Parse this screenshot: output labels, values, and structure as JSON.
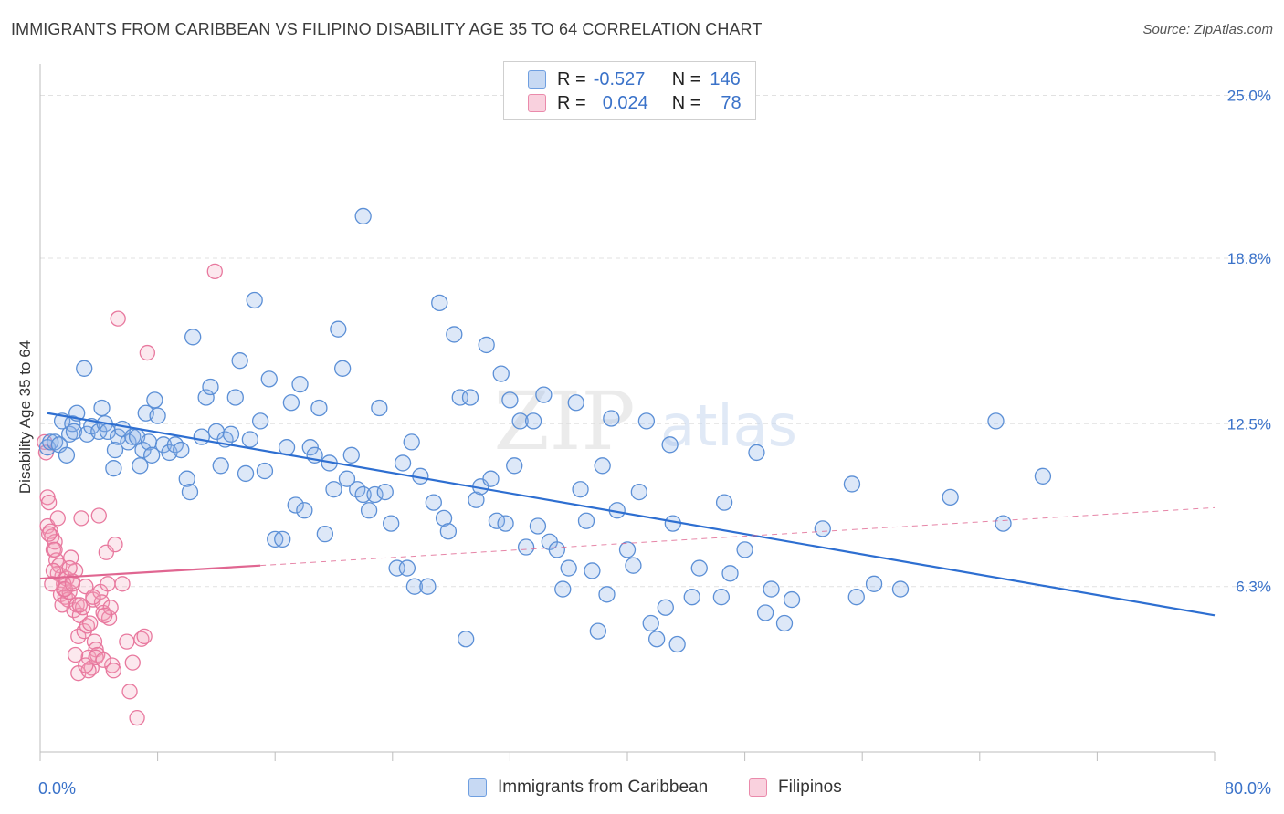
{
  "title": "IMMIGRANTS FROM CARIBBEAN VS FILIPINO DISABILITY AGE 35 TO 64 CORRELATION CHART",
  "source": "Source: ZipAtlas.com",
  "watermark": {
    "zip": "ZIP",
    "atlas": "atlas"
  },
  "legend": {
    "r_label": "R =",
    "n_label": "N =",
    "rows": [
      {
        "r": "-0.527",
        "n": "146",
        "color": "#8fb4e8"
      },
      {
        "r": "0.024",
        "n": "78",
        "color": "#f3a3bd"
      }
    ]
  },
  "bottom_legend": [
    {
      "label": "Immigrants from Caribbean",
      "color": "#8fb4e8"
    },
    {
      "label": "Filipinos",
      "color": "#f3a3bd"
    }
  ],
  "colors": {
    "blue_stroke": "#5b8fd6",
    "blue_fill": "rgba(143,180,232,0.30)",
    "blue_line": "#2e6fd1",
    "pink_stroke": "#e8789e",
    "pink_fill": "rgba(243,163,189,0.25)",
    "pink_line": "#e06691",
    "tick_label": "#3a72c9",
    "grid": "#e1e1e1"
  },
  "chart_data": {
    "type": "scatter",
    "xlabel": "",
    "ylabel": "Disability Age 35 to 64",
    "xlim": [
      0,
      80
    ],
    "ylim": [
      0,
      26.2
    ],
    "x_tick_labels": [
      "0.0%",
      "80.0%"
    ],
    "y_ticks": [
      6.3,
      12.5,
      18.8,
      25.0
    ],
    "y_tick_labels": [
      "6.3%",
      "12.5%",
      "18.8%",
      "25.0%"
    ],
    "grid": true,
    "series": [
      {
        "name": "Immigrants from Caribbean",
        "r": -0.527,
        "n": 146,
        "trend": {
          "x": [
            0.5,
            80
          ],
          "y": [
            12.9,
            5.2
          ]
        },
        "points": [
          [
            0.5,
            11.6
          ],
          [
            0.7,
            11.8
          ],
          [
            1.0,
            11.8
          ],
          [
            1.3,
            11.7
          ],
          [
            1.5,
            12.6
          ],
          [
            1.8,
            11.3
          ],
          [
            2.0,
            12.1
          ],
          [
            2.2,
            12.5
          ],
          [
            2.3,
            12.2
          ],
          [
            2.5,
            12.9
          ],
          [
            3.0,
            14.6
          ],
          [
            3.2,
            12.1
          ],
          [
            3.5,
            12.4
          ],
          [
            4.0,
            12.2
          ],
          [
            4.2,
            13.1
          ],
          [
            4.4,
            12.5
          ],
          [
            4.6,
            12.2
          ],
          [
            5.0,
            10.8
          ],
          [
            5.1,
            11.5
          ],
          [
            5.3,
            12.0
          ],
          [
            5.6,
            12.3
          ],
          [
            6.0,
            11.8
          ],
          [
            6.3,
            12.0
          ],
          [
            6.6,
            12.0
          ],
          [
            6.8,
            10.9
          ],
          [
            7.0,
            11.5
          ],
          [
            7.2,
            12.9
          ],
          [
            7.4,
            11.8
          ],
          [
            7.6,
            11.3
          ],
          [
            7.8,
            13.4
          ],
          [
            8.0,
            12.8
          ],
          [
            8.4,
            11.7
          ],
          [
            8.8,
            11.4
          ],
          [
            9.2,
            11.7
          ],
          [
            9.6,
            11.5
          ],
          [
            10.0,
            10.4
          ],
          [
            10.2,
            9.9
          ],
          [
            10.4,
            15.8
          ],
          [
            11.0,
            12.0
          ],
          [
            11.3,
            13.5
          ],
          [
            11.6,
            13.9
          ],
          [
            12.0,
            12.2
          ],
          [
            12.3,
            10.9
          ],
          [
            12.6,
            11.9
          ],
          [
            13.0,
            12.1
          ],
          [
            13.3,
            13.5
          ],
          [
            13.6,
            14.9
          ],
          [
            14.0,
            10.6
          ],
          [
            14.3,
            11.9
          ],
          [
            14.6,
            17.2
          ],
          [
            15.0,
            12.6
          ],
          [
            15.3,
            10.7
          ],
          [
            15.6,
            14.2
          ],
          [
            16.0,
            8.1
          ],
          [
            16.5,
            8.1
          ],
          [
            16.8,
            11.6
          ],
          [
            17.1,
            13.3
          ],
          [
            17.4,
            9.4
          ],
          [
            17.7,
            14.0
          ],
          [
            18.0,
            9.2
          ],
          [
            18.4,
            11.6
          ],
          [
            18.7,
            11.3
          ],
          [
            19.0,
            13.1
          ],
          [
            19.4,
            8.3
          ],
          [
            19.7,
            11.0
          ],
          [
            20.0,
            10.0
          ],
          [
            20.3,
            16.1
          ],
          [
            20.6,
            14.6
          ],
          [
            20.9,
            10.4
          ],
          [
            21.2,
            11.3
          ],
          [
            21.6,
            10.0
          ],
          [
            22.0,
            9.8
          ],
          [
            22.4,
            9.2
          ],
          [
            22.8,
            9.8
          ],
          [
            23.1,
            13.1
          ],
          [
            23.5,
            9.9
          ],
          [
            23.9,
            8.7
          ],
          [
            24.3,
            7.0
          ],
          [
            24.7,
            11.0
          ],
          [
            25.0,
            7.0
          ],
          [
            25.3,
            11.8
          ],
          [
            25.5,
            6.3
          ],
          [
            25.9,
            10.5
          ],
          [
            26.4,
            6.3
          ],
          [
            26.8,
            9.5
          ],
          [
            27.2,
            17.1
          ],
          [
            27.5,
            8.9
          ],
          [
            27.8,
            8.4
          ],
          [
            28.2,
            15.9
          ],
          [
            28.6,
            13.5
          ],
          [
            29.0,
            4.3
          ],
          [
            29.3,
            13.5
          ],
          [
            29.7,
            9.6
          ],
          [
            30.0,
            10.1
          ],
          [
            30.4,
            15.5
          ],
          [
            30.7,
            10.4
          ],
          [
            31.1,
            8.8
          ],
          [
            31.4,
            14.4
          ],
          [
            31.7,
            8.7
          ],
          [
            32.0,
            13.4
          ],
          [
            32.3,
            10.9
          ],
          [
            32.7,
            12.6
          ],
          [
            33.1,
            7.8
          ],
          [
            33.6,
            12.6
          ],
          [
            33.9,
            8.6
          ],
          [
            34.3,
            13.6
          ],
          [
            34.7,
            8.0
          ],
          [
            35.2,
            7.7
          ],
          [
            35.6,
            6.2
          ],
          [
            36.0,
            7.0
          ],
          [
            36.5,
            13.3
          ],
          [
            36.8,
            10.0
          ],
          [
            37.2,
            8.8
          ],
          [
            37.6,
            6.9
          ],
          [
            38.0,
            4.6
          ],
          [
            38.6,
            6.0
          ],
          [
            38.9,
            12.7
          ],
          [
            38.3,
            10.9
          ],
          [
            39.3,
            9.2
          ],
          [
            40.0,
            7.7
          ],
          [
            40.4,
            7.1
          ],
          [
            40.8,
            9.9
          ],
          [
            41.3,
            12.6
          ],
          [
            41.6,
            4.9
          ],
          [
            42.0,
            4.3
          ],
          [
            42.6,
            5.5
          ],
          [
            42.9,
            11.7
          ],
          [
            43.1,
            8.7
          ],
          [
            43.4,
            4.1
          ],
          [
            44.4,
            5.9
          ],
          [
            44.9,
            7.0
          ],
          [
            46.4,
            5.9
          ],
          [
            46.6,
            9.5
          ],
          [
            47.0,
            6.8
          ],
          [
            48.0,
            7.7
          ],
          [
            48.8,
            11.4
          ],
          [
            49.4,
            5.3
          ],
          [
            49.8,
            6.2
          ],
          [
            50.7,
            4.9
          ],
          [
            51.2,
            5.8
          ],
          [
            53.3,
            8.5
          ],
          [
            55.3,
            10.2
          ],
          [
            55.6,
            5.9
          ],
          [
            56.8,
            6.4
          ],
          [
            58.6,
            6.2
          ],
          [
            62.0,
            9.7
          ],
          [
            65.1,
            12.6
          ],
          [
            65.6,
            8.7
          ],
          [
            68.3,
            10.5
          ],
          [
            22.0,
            20.4
          ]
        ]
      },
      {
        "name": "Filipinos",
        "r": 0.024,
        "n": 78,
        "trend_solid": {
          "x": [
            0,
            15
          ],
          "y": [
            6.6,
            7.1
          ]
        },
        "trend_dashed": {
          "x": [
            15,
            80
          ],
          "y": [
            7.1,
            9.3
          ]
        },
        "points": [
          [
            0.3,
            11.8
          ],
          [
            0.4,
            11.4
          ],
          [
            0.5,
            9.7
          ],
          [
            0.5,
            8.6
          ],
          [
            0.6,
            9.5
          ],
          [
            0.7,
            8.4
          ],
          [
            0.8,
            8.2
          ],
          [
            0.9,
            7.7
          ],
          [
            1.0,
            8.0
          ],
          [
            1.1,
            7.3
          ],
          [
            1.2,
            6.8
          ],
          [
            1.3,
            7.1
          ],
          [
            1.4,
            6.0
          ],
          [
            1.5,
            6.7
          ],
          [
            1.6,
            6.2
          ],
          [
            1.7,
            5.9
          ],
          [
            1.8,
            6.6
          ],
          [
            1.9,
            5.8
          ],
          [
            2.0,
            6.1
          ],
          [
            2.1,
            7.4
          ],
          [
            2.2,
            6.5
          ],
          [
            2.3,
            5.4
          ],
          [
            2.4,
            6.9
          ],
          [
            2.5,
            5.6
          ],
          [
            2.6,
            4.4
          ],
          [
            2.7,
            5.2
          ],
          [
            2.8,
            8.9
          ],
          [
            2.9,
            5.5
          ],
          [
            3.0,
            4.6
          ],
          [
            3.1,
            6.3
          ],
          [
            3.2,
            4.8
          ],
          [
            3.3,
            3.6
          ],
          [
            3.4,
            4.9
          ],
          [
            3.5,
            3.2
          ],
          [
            3.6,
            5.8
          ],
          [
            3.7,
            4.2
          ],
          [
            3.8,
            3.9
          ],
          [
            3.9,
            3.7
          ],
          [
            4.0,
            9.0
          ],
          [
            4.1,
            6.1
          ],
          [
            4.2,
            5.7
          ],
          [
            4.3,
            5.3
          ],
          [
            4.5,
            7.6
          ],
          [
            4.6,
            6.4
          ],
          [
            4.7,
            5.1
          ],
          [
            4.8,
            5.5
          ],
          [
            4.9,
            3.3
          ],
          [
            5.1,
            7.9
          ],
          [
            5.3,
            16.5
          ],
          [
            5.6,
            6.4
          ],
          [
            5.9,
            4.2
          ],
          [
            6.1,
            2.3
          ],
          [
            6.3,
            3.4
          ],
          [
            6.6,
            1.3
          ],
          [
            6.9,
            4.3
          ],
          [
            7.1,
            4.4
          ],
          [
            7.3,
            15.2
          ],
          [
            11.9,
            18.3
          ],
          [
            2.6,
            3.0
          ],
          [
            3.3,
            3.1
          ],
          [
            1.6,
            6.4
          ],
          [
            0.9,
            6.9
          ],
          [
            1.2,
            8.9
          ],
          [
            2.0,
            7.0
          ],
          [
            3.6,
            5.9
          ],
          [
            4.4,
            5.2
          ],
          [
            1.0,
            7.7
          ],
          [
            0.6,
            8.3
          ],
          [
            0.8,
            6.4
          ],
          [
            2.4,
            3.7
          ],
          [
            3.1,
            3.3
          ],
          [
            3.8,
            3.6
          ],
          [
            4.3,
            3.5
          ],
          [
            5.0,
            3.1
          ],
          [
            1.7,
            6.2
          ],
          [
            2.2,
            6.4
          ],
          [
            2.7,
            5.6
          ],
          [
            1.5,
            5.6
          ]
        ]
      }
    ]
  }
}
